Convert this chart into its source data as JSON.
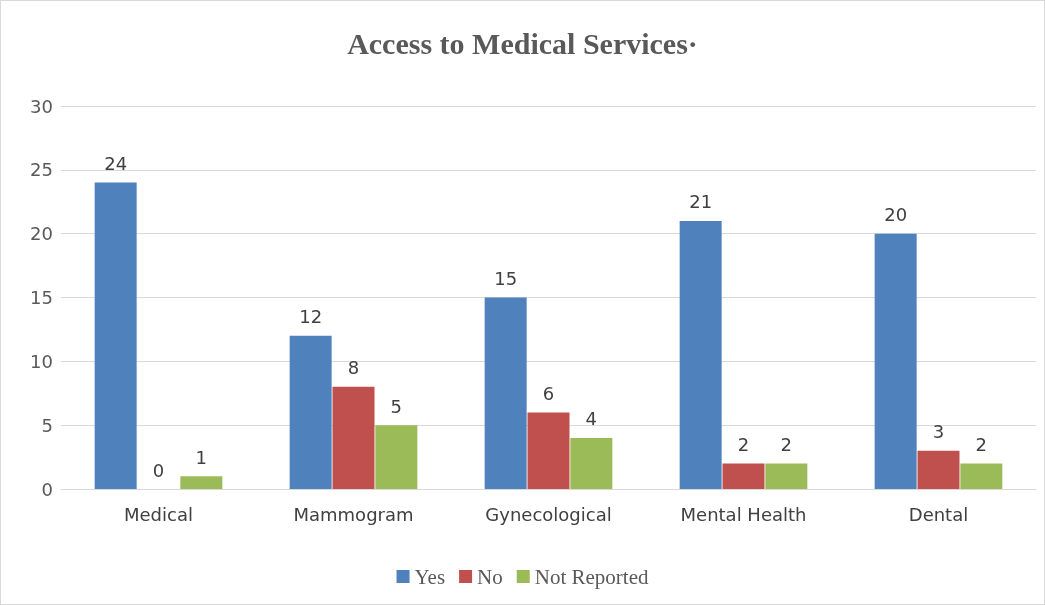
{
  "chart_data": {
    "type": "bar",
    "title": "Access to Medical Services·",
    "categories": [
      "Medical",
      "Mammogram",
      "Gynecological",
      "Mental Health",
      "Dental"
    ],
    "series": [
      {
        "name": "Yes",
        "color": "#4f81bd",
        "values": [
          24,
          12,
          15,
          21,
          20
        ]
      },
      {
        "name": "No",
        "color": "#c0504d",
        "values": [
          0,
          8,
          6,
          2,
          3
        ]
      },
      {
        "name": "Not Reported",
        "color": "#9bbb59",
        "values": [
          1,
          5,
          4,
          2,
          2
        ]
      }
    ],
    "ylim": [
      0,
      30
    ],
    "yticks": [
      0,
      5,
      10,
      15,
      20,
      25,
      30
    ],
    "grid": "y",
    "legend": "bottom",
    "data_labels": true
  }
}
